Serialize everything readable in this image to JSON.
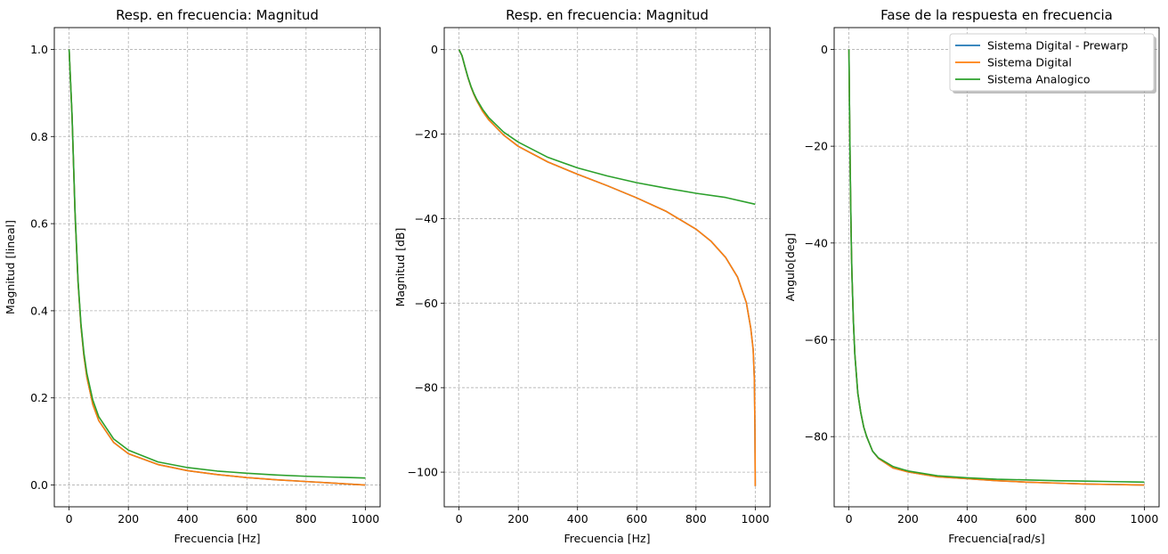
{
  "chart_data": [
    {
      "type": "line",
      "title": "Resp. en frecuencia: Magnitud",
      "xlabel": "Frecuencia [Hz]",
      "ylabel": "Magnitud [lineal]",
      "xlim": [
        -50,
        1050
      ],
      "ylim": [
        -0.05,
        1.05
      ],
      "xticks": [
        0,
        200,
        400,
        600,
        800,
        1000
      ],
      "yticks": [
        0.0,
        0.2,
        0.4,
        0.6,
        0.8,
        1.0
      ],
      "xtick_labels": [
        "0",
        "200",
        "400",
        "600",
        "800",
        "1000"
      ],
      "ytick_labels": [
        "0.0",
        "0.2",
        "0.4",
        "0.6",
        "0.8",
        "1.0"
      ],
      "grid": true,
      "series": [
        {
          "name": "Sistema Digital - Prewarp",
          "color": "#1f77b4",
          "x": [
            0,
            10,
            20,
            30,
            40,
            50,
            60,
            80,
            100,
            150,
            200,
            300,
            400,
            500,
            600,
            700,
            800,
            900,
            1000
          ],
          "y": [
            1.0,
            0.845,
            0.623,
            0.467,
            0.364,
            0.296,
            0.247,
            0.185,
            0.148,
            0.098,
            0.072,
            0.047,
            0.033,
            0.024,
            0.017,
            0.012,
            0.008,
            0.004,
            0.0
          ]
        },
        {
          "name": "Sistema Digital",
          "color": "#ff7f0e",
          "x": [
            0,
            10,
            20,
            30,
            40,
            50,
            60,
            80,
            100,
            150,
            200,
            300,
            400,
            500,
            600,
            700,
            800,
            900,
            1000
          ],
          "y": [
            1.0,
            0.845,
            0.623,
            0.467,
            0.364,
            0.296,
            0.247,
            0.185,
            0.148,
            0.098,
            0.072,
            0.047,
            0.033,
            0.024,
            0.017,
            0.012,
            0.008,
            0.004,
            0.0
          ]
        },
        {
          "name": "Sistema Analogico",
          "color": "#2ca02c",
          "x": [
            0,
            10,
            20,
            30,
            40,
            50,
            60,
            80,
            100,
            150,
            200,
            300,
            400,
            500,
            600,
            700,
            800,
            900,
            1000
          ],
          "y": [
            1.0,
            0.847,
            0.628,
            0.471,
            0.37,
            0.303,
            0.256,
            0.195,
            0.157,
            0.106,
            0.08,
            0.053,
            0.04,
            0.032,
            0.027,
            0.023,
            0.02,
            0.018,
            0.016
          ]
        }
      ]
    },
    {
      "type": "line",
      "title": "Resp. en frecuencia: Magnitud",
      "xlabel": "Frecuencia [Hz]",
      "ylabel": "Magnitud [dB]",
      "xlim": [
        -50,
        1050
      ],
      "ylim": [
        -108.2,
        5.2
      ],
      "xticks": [
        0,
        200,
        400,
        600,
        800,
        1000
      ],
      "yticks": [
        0,
        -20,
        -40,
        -60,
        -80,
        -100
      ],
      "xtick_labels": [
        "0",
        "200",
        "400",
        "600",
        "800",
        "1000"
      ],
      "ytick_labels": [
        "0",
        "−20",
        "−40",
        "−60",
        "−80",
        "−100"
      ],
      "grid": true,
      "series": [
        {
          "name": "Sistema Digital - Prewarp",
          "color": "#1f77b4",
          "x": [
            0,
            10,
            20,
            30,
            40,
            50,
            60,
            80,
            100,
            150,
            200,
            300,
            400,
            500,
            600,
            700,
            800,
            850,
            900,
            940,
            970,
            985,
            993,
            997,
            999,
            1000
          ],
          "y": [
            0,
            -1.47,
            -4.11,
            -6.62,
            -8.77,
            -10.57,
            -12.13,
            -14.63,
            -16.6,
            -20.2,
            -22.9,
            -26.6,
            -29.5,
            -32.2,
            -35.1,
            -38.3,
            -42.5,
            -45.3,
            -49.2,
            -53.8,
            -59.9,
            -66.0,
            -71.0,
            -78.0,
            -90.0,
            -103.3
          ]
        },
        {
          "name": "Sistema Digital",
          "color": "#ff7f0e",
          "x": [
            0,
            10,
            20,
            30,
            40,
            50,
            60,
            80,
            100,
            150,
            200,
            300,
            400,
            500,
            600,
            700,
            800,
            850,
            900,
            940,
            970,
            985,
            993,
            997,
            999,
            1000
          ],
          "y": [
            0,
            -1.47,
            -4.11,
            -6.62,
            -8.77,
            -10.57,
            -12.13,
            -14.63,
            -16.6,
            -20.2,
            -22.9,
            -26.6,
            -29.5,
            -32.2,
            -35.1,
            -38.3,
            -42.5,
            -45.3,
            -49.2,
            -53.8,
            -59.9,
            -66.0,
            -71.0,
            -78.0,
            -90.0,
            -103.3
          ]
        },
        {
          "name": "Sistema Analogico",
          "color": "#2ca02c",
          "x": [
            0,
            10,
            20,
            30,
            40,
            50,
            60,
            80,
            100,
            150,
            200,
            300,
            400,
            500,
            600,
            700,
            800,
            900,
            1000
          ],
          "y": [
            0,
            -1.44,
            -4.04,
            -6.53,
            -8.64,
            -10.37,
            -11.84,
            -14.18,
            -16.07,
            -19.5,
            -21.9,
            -25.5,
            -28.0,
            -29.9,
            -31.5,
            -32.8,
            -34.0,
            -35.0,
            -36.6
          ]
        }
      ]
    },
    {
      "type": "line",
      "title": "Fase de la respuesta en frecuencia",
      "xlabel": "Frecuencia[rad/s]",
      "ylabel": "Angulo[deg]",
      "xlim": [
        -50,
        1050
      ],
      "ylim": [
        -94.5,
        4.5
      ],
      "xticks": [
        0,
        200,
        400,
        600,
        800,
        1000
      ],
      "yticks": [
        0,
        -20,
        -40,
        -60,
        -80
      ],
      "xtick_labels": [
        "0",
        "200",
        "400",
        "600",
        "800",
        "1000"
      ],
      "ytick_labels": [
        "0",
        "−20",
        "−40",
        "−60",
        "−80"
      ],
      "grid": true,
      "legend": {
        "position": "upper right",
        "entries": [
          "Sistema Digital - Prewarp",
          "Sistema Digital",
          "Sistema Analogico"
        ]
      },
      "series": [
        {
          "name": "Sistema Digital - Prewarp",
          "color": "#1f77b4",
          "x": [
            0,
            2,
            4,
            6,
            8,
            10,
            15,
            20,
            30,
            40,
            50,
            60,
            80,
            100,
            150,
            200,
            300,
            400,
            500,
            600,
            700,
            800,
            900,
            1000
          ],
          "y": [
            0,
            -12,
            -23,
            -32,
            -40,
            -46,
            -56,
            -63,
            -71,
            -75,
            -78,
            -80,
            -83,
            -84.5,
            -86.5,
            -87.3,
            -88.3,
            -88.7,
            -89.1,
            -89.4,
            -89.6,
            -89.8,
            -89.9,
            -90.0
          ]
        },
        {
          "name": "Sistema Digital",
          "color": "#ff7f0e",
          "x": [
            0,
            2,
            4,
            6,
            8,
            10,
            15,
            20,
            30,
            40,
            50,
            60,
            80,
            100,
            150,
            200,
            300,
            400,
            500,
            600,
            700,
            800,
            900,
            1000
          ],
          "y": [
            0,
            -12,
            -23,
            -32,
            -40,
            -46,
            -56,
            -63,
            -71,
            -75,
            -78,
            -80,
            -83,
            -84.5,
            -86.5,
            -87.3,
            -88.3,
            -88.7,
            -89.1,
            -89.4,
            -89.6,
            -89.8,
            -89.9,
            -90.0
          ]
        },
        {
          "name": "Sistema Analogico",
          "color": "#2ca02c",
          "x": [
            0,
            2,
            4,
            6,
            8,
            10,
            15,
            20,
            30,
            40,
            50,
            60,
            80,
            100,
            150,
            200,
            300,
            400,
            500,
            600,
            700,
            800,
            900,
            1000
          ],
          "y": [
            0,
            -12,
            -23,
            -32,
            -40,
            -46,
            -56,
            -63,
            -71,
            -75,
            -78,
            -80,
            -83,
            -84.4,
            -86.2,
            -87.1,
            -88.1,
            -88.5,
            -88.8,
            -88.95,
            -89.1,
            -89.2,
            -89.3,
            -89.4
          ]
        }
      ]
    }
  ]
}
